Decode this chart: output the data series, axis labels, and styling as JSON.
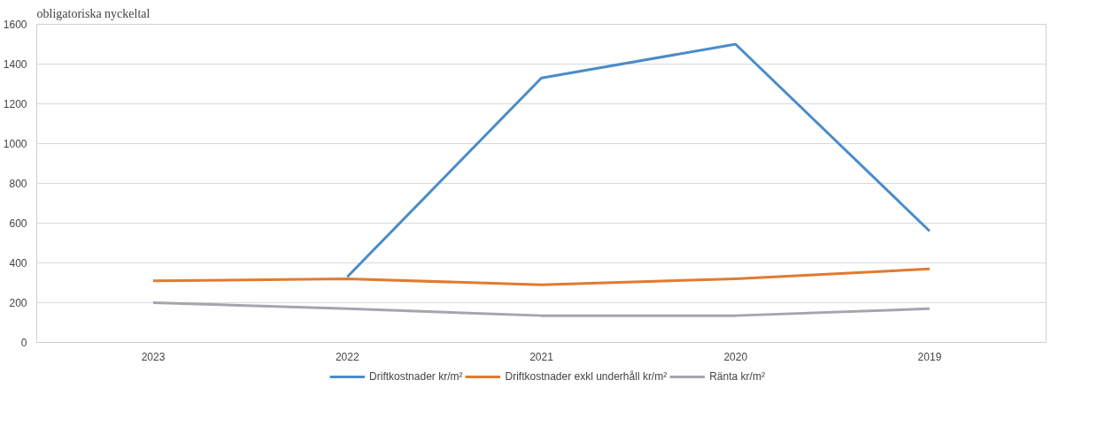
{
  "chart_data": {
    "type": "line",
    "title": "obligatoriska nyckeltal",
    "categories": [
      "2023",
      "2022",
      "2021",
      "2020",
      "2019"
    ],
    "series": [
      {
        "name": "Driftkostnader kr/m²",
        "color": "#4a8cc9",
        "values": [
          null,
          330,
          1330,
          1500,
          560
        ]
      },
      {
        "name": "Driftkostnader exkl underhåll kr/m²",
        "color": "#e07b30",
        "values": [
          310,
          320,
          290,
          320,
          370
        ]
      },
      {
        "name": "Ränta kr/m²",
        "color": "#a5a5b0",
        "values": [
          200,
          170,
          135,
          135,
          170
        ]
      }
    ],
    "ylim": [
      0,
      1600
    ],
    "yticks": [
      0,
      200,
      400,
      600,
      800,
      1000,
      1200,
      1400,
      1600
    ],
    "grid": "y",
    "legend": "bottom",
    "marker": "none",
    "line_style": "solid"
  }
}
